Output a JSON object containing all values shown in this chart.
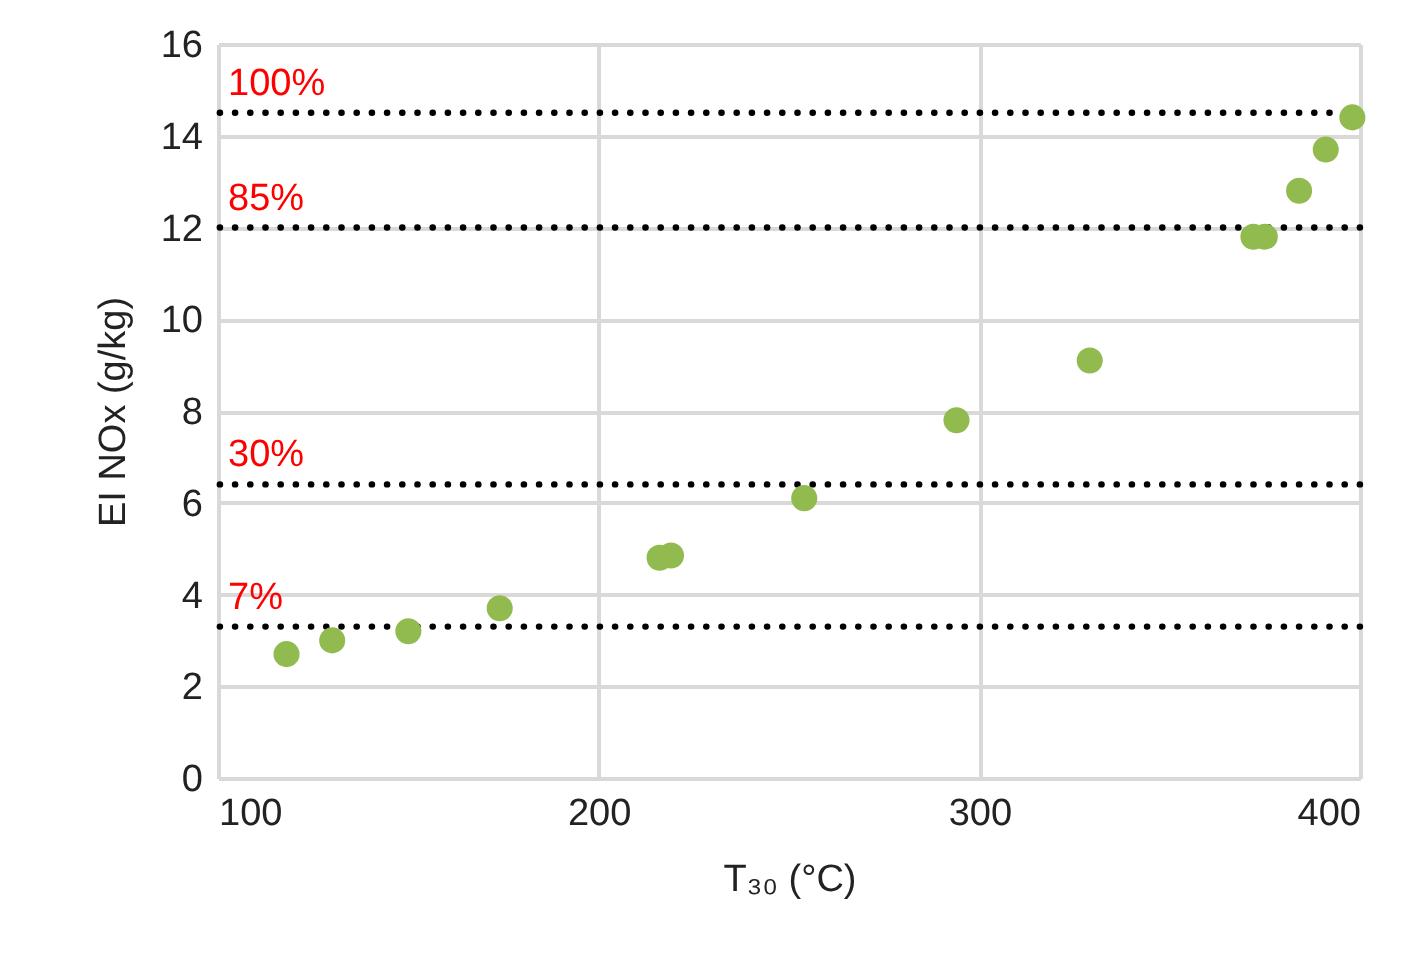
{
  "chart_data": {
    "type": "scatter",
    "xlabel": "T₃₀ (°C)",
    "ylabel": "EI NOx (g/kg)",
    "x": [
      118,
      130,
      150,
      174,
      216,
      219,
      254,
      294,
      329,
      372,
      375,
      384,
      391,
      398
    ],
    "series": [
      {
        "color": "#92bb4f",
        "values": [
          2.7,
          3.0,
          3.2,
          3.7,
          4.8,
          4.85,
          6.1,
          7.8,
          9.1,
          11.8,
          11.8,
          12.8,
          13.7,
          14.4
        ]
      }
    ],
    "xlim": [
      100,
      400
    ],
    "xticks": [
      100,
      200,
      300,
      400
    ],
    "ylim": [
      0,
      16
    ],
    "yticks": [
      0,
      2,
      4,
      6,
      8,
      10,
      12,
      14,
      16
    ],
    "grid": true,
    "marker": "circle",
    "ref_lines": [
      {
        "axis": "y",
        "value": 14.5,
        "color": "#000000",
        "line_style": "dotted"
      },
      {
        "axis": "y",
        "value": 12,
        "color": "#000000",
        "line_style": "dotted"
      },
      {
        "axis": "y",
        "value": 6.4,
        "color": "#000000",
        "line_style": "dotted"
      },
      {
        "axis": "y",
        "value": 3.3,
        "color": "#000000",
        "line_style": "dotted"
      }
    ],
    "annotations": [
      {
        "text": "100%",
        "y": 14.5
      },
      {
        "text": "85%",
        "y": 12
      },
      {
        "text": "30%",
        "y": 6.4
      },
      {
        "text": "7%",
        "y": 3.3
      }
    ]
  }
}
